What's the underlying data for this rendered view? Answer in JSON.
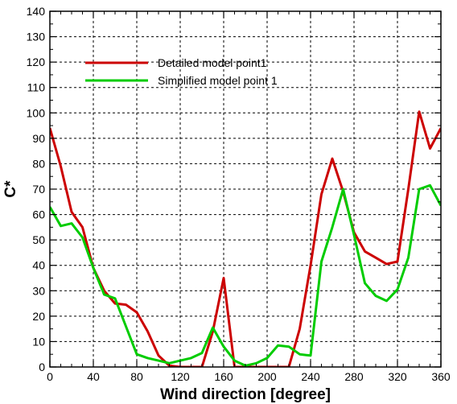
{
  "chart_data": {
    "type": "line",
    "xlabel": "Wind direction [degree]",
    "ylabel": "C*",
    "xlim": [
      0,
      360
    ],
    "ylim": [
      0,
      140
    ],
    "xticks": [
      0,
      40,
      80,
      120,
      160,
      200,
      240,
      280,
      320,
      360
    ],
    "yticks": [
      0,
      10,
      20,
      30,
      40,
      50,
      60,
      70,
      80,
      90,
      100,
      110,
      120,
      130,
      140
    ],
    "grid": true,
    "legend_position": "upper-left",
    "series": [
      {
        "name": "Detailed model point1",
        "color": "#cc0000",
        "x": [
          0,
          10,
          20,
          30,
          40,
          50,
          60,
          70,
          80,
          90,
          100,
          110,
          120,
          130,
          140,
          150,
          160,
          170,
          180,
          190,
          200,
          210,
          220,
          230,
          240,
          250,
          260,
          270,
          280,
          290,
          300,
          310,
          320,
          330,
          340,
          350,
          360
        ],
        "values": [
          94,
          79,
          61,
          55,
          39,
          30,
          25,
          24.5,
          21.5,
          14,
          4.5,
          0.5,
          0,
          0,
          0,
          14,
          35,
          0,
          0,
          0,
          0,
          0,
          0,
          15,
          40,
          68,
          82,
          69,
          53,
          45.5,
          43,
          40.5,
          41.5,
          70,
          100.5,
          86,
          94
        ]
      },
      {
        "name": "Simplified model point 1",
        "color": "#00cc00",
        "x": [
          0,
          10,
          20,
          30,
          40,
          50,
          60,
          70,
          80,
          90,
          100,
          110,
          120,
          130,
          140,
          150,
          160,
          170,
          180,
          190,
          200,
          210,
          220,
          230,
          240,
          250,
          260,
          270,
          280,
          290,
          300,
          310,
          320,
          330,
          340,
          350,
          360
        ],
        "values": [
          63,
          55.5,
          56.5,
          51,
          39,
          28.5,
          27,
          16,
          5,
          3.5,
          2.5,
          1.5,
          2.5,
          3.5,
          5.5,
          15.5,
          8,
          2.5,
          0.5,
          1.5,
          3.5,
          8.5,
          8,
          5,
          4.5,
          41.5,
          55,
          70,
          52,
          33,
          28,
          26,
          30.5,
          43,
          70,
          71.5,
          63.5
        ]
      }
    ]
  }
}
